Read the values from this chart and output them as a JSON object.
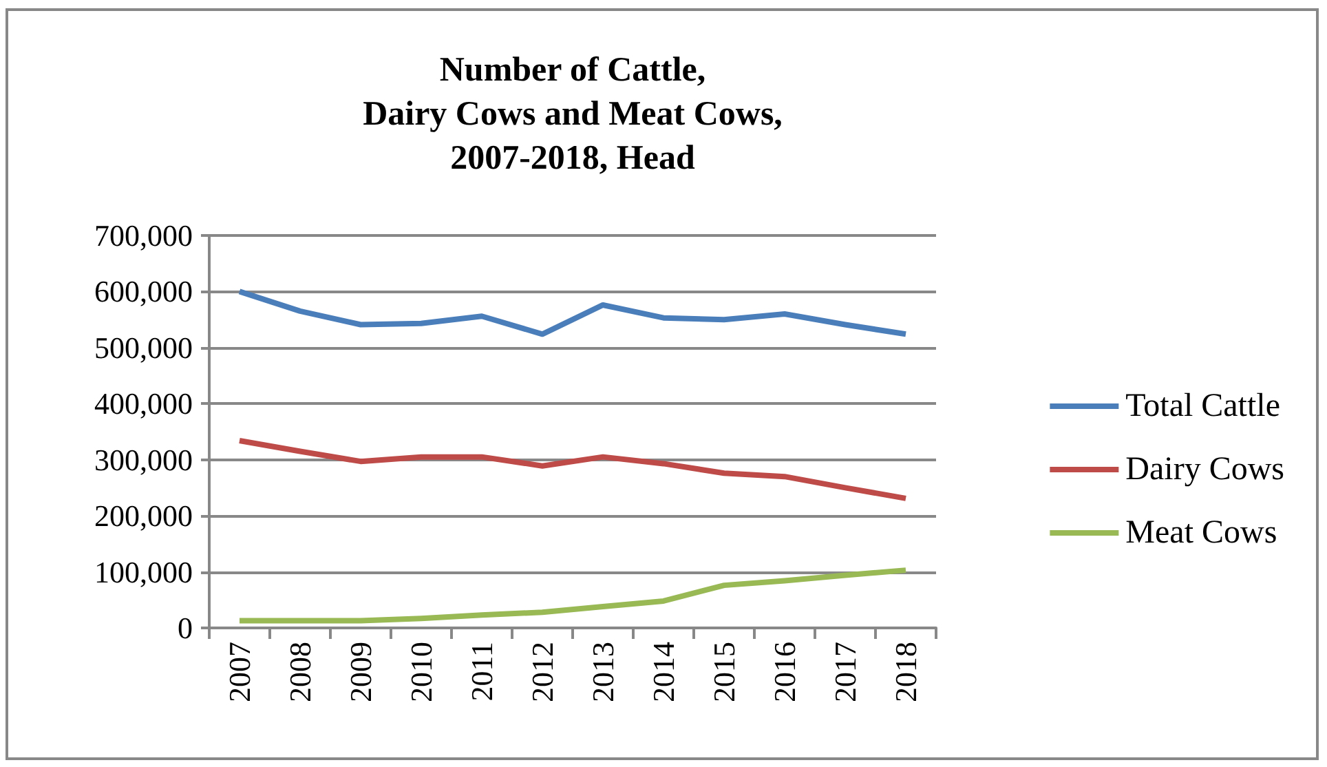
{
  "chart_data": {
    "type": "line",
    "title": "Number of Cattle,\nDairy Cows and Meat Cows,\n2007-2018, Head",
    "categories": [
      "2007",
      "2008",
      "2009",
      "2010",
      "2011",
      "2012",
      "2013",
      "2014",
      "2015",
      "2016",
      "2017",
      "2018"
    ],
    "series": [
      {
        "name": "Total Cattle",
        "color": "#4a7ebb",
        "values": [
          600000,
          565000,
          541000,
          543000,
          556000,
          524000,
          576000,
          553000,
          550000,
          560000,
          541000,
          524000
        ]
      },
      {
        "name": "Dairy Cows",
        "color": "#be4b48",
        "values": [
          334000,
          315000,
          297000,
          305000,
          305000,
          289000,
          305000,
          293000,
          276000,
          270000,
          250000,
          231000
        ]
      },
      {
        "name": "Meat Cows",
        "color": "#98b954",
        "values": [
          13000,
          13000,
          13000,
          17000,
          23000,
          28000,
          38000,
          48000,
          76000,
          84000,
          94000,
          103000
        ]
      }
    ],
    "ylim": [
      0,
      700000
    ],
    "yticks": [
      0,
      {
        "value": 100000,
        "label": "100,000"
      },
      {
        "value": 200000,
        "label": "200,000"
      },
      {
        "value": 300000,
        "label": "300,000"
      },
      {
        "value": 400000,
        "label": "400,000"
      },
      {
        "value": 500000,
        "label": "500,000"
      },
      {
        "value": 600000,
        "label": "600,000"
      },
      {
        "value": 700000,
        "label": "700,000"
      }
    ],
    "grid": "y",
    "legend": "right",
    "marker": "none",
    "line_style": "solid"
  }
}
